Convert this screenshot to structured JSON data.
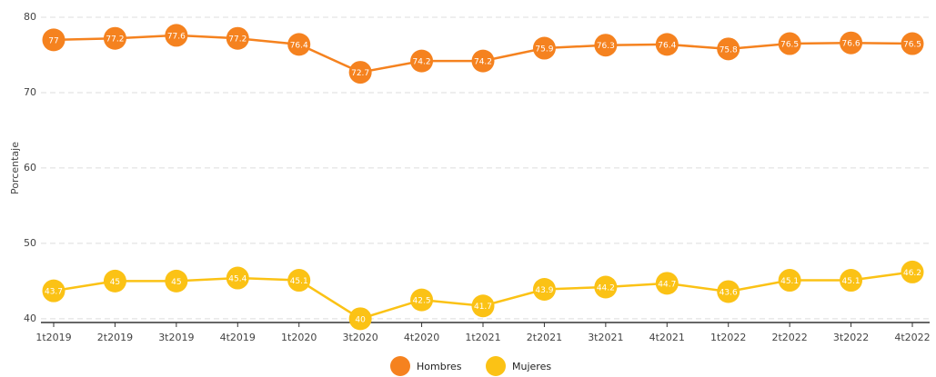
{
  "chart_data": {
    "type": "line",
    "y_label": "Porcentaje",
    "categories": [
      "1t2019",
      "2t2019",
      "3t2019",
      "4t2019",
      "1t2020",
      "3t2020",
      "4t2020",
      "1t2021",
      "2t2021",
      "3t2021",
      "4t2021",
      "1t2022",
      "2t2022",
      "3t2022",
      "4t2022"
    ],
    "series": [
      {
        "name": "Hombres",
        "color": "#f5821f",
        "values": [
          77,
          77.2,
          77.6,
          77.2,
          76.4,
          72.7,
          74.2,
          74.2,
          75.9,
          76.3,
          76.4,
          75.8,
          76.5,
          76.6,
          76.5
        ]
      },
      {
        "name": "Mujeres",
        "color": "#fbc215",
        "values": [
          43.7,
          45,
          45,
          45.4,
          45.1,
          40,
          42.5,
          41.7,
          43.9,
          44.2,
          44.7,
          43.6,
          45.1,
          45.1,
          46.2
        ]
      }
    ],
    "ylim": [
      39.5,
      80
    ],
    "yticks": [
      40,
      50,
      60,
      70,
      80
    ],
    "grid": true,
    "legend": "bottom"
  }
}
